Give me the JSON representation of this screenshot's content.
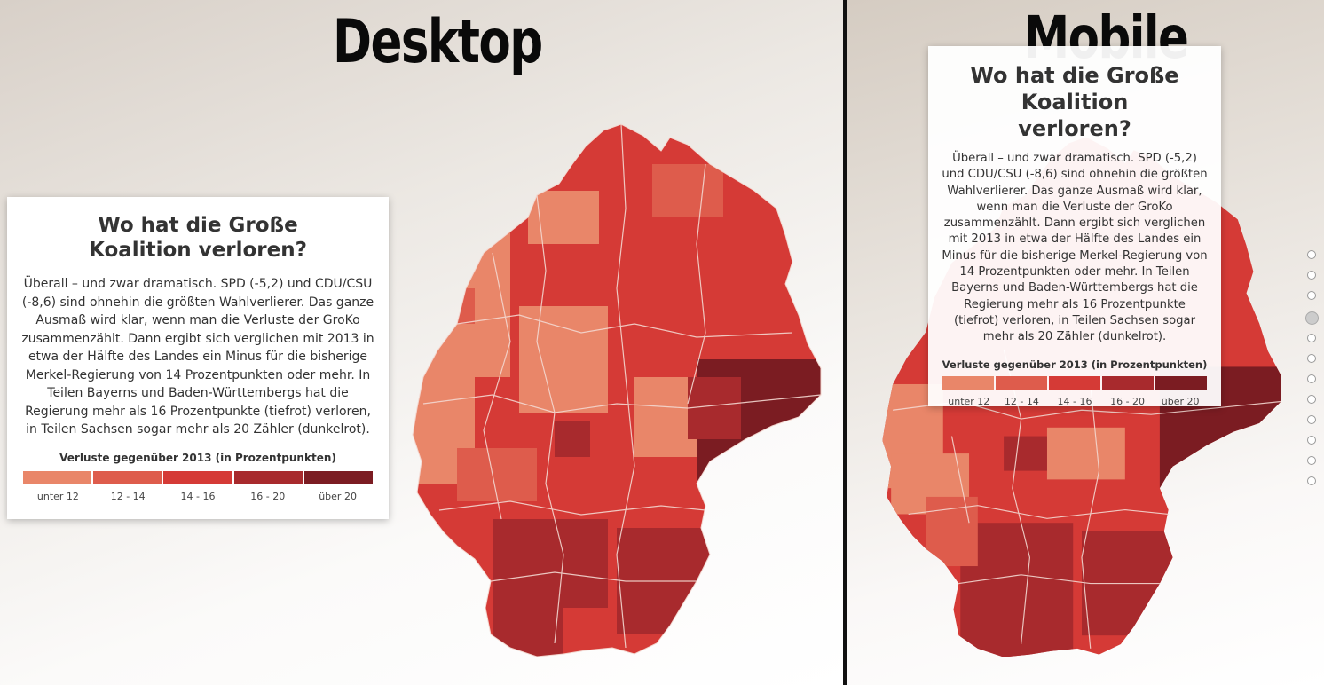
{
  "labels": {
    "desktop": "Desktop",
    "mobile": "Mobile"
  },
  "card": {
    "title": "Wo hat die Große Koalition verloren?",
    "body": "Überall – und zwar dramatisch. SPD (-5,2) und CDU/CSU (-8,6) sind ohnehin die größten Wahlverlierer. Das ganze Ausmaß wird klar, wenn man die Verluste der GroKo zusammenzählt. Dann ergibt sich verglichen mit 2013 in etwa der Hälfte des Landes ein Minus für die bisherige Merkel-Regierung von 14 Prozentpunkten oder mehr. In Teilen Bayerns und Baden-Württembergs hat die Regierung mehr als 16 Prozentpunkte (tiefrot) verloren, in Teilen Sachsen sogar mehr als 20 Zähler (dunkelrot)."
  },
  "legend": {
    "title": "Verluste gegenüber 2013 (in Prozentpunkten)",
    "items": [
      {
        "label": "unter 12",
        "color": "#e98669"
      },
      {
        "label": "12 - 14",
        "color": "#de5c4c"
      },
      {
        "label": "14 - 16",
        "color": "#d53a36"
      },
      {
        "label": "16 - 20",
        "color": "#a82a2d"
      },
      {
        "label": "über 20",
        "color": "#7b1c22"
      }
    ]
  },
  "colors": {
    "borders": "#f3d7d0",
    "mapBase": "#d53a36"
  },
  "pagination": {
    "count": 12,
    "active_index": 3
  }
}
